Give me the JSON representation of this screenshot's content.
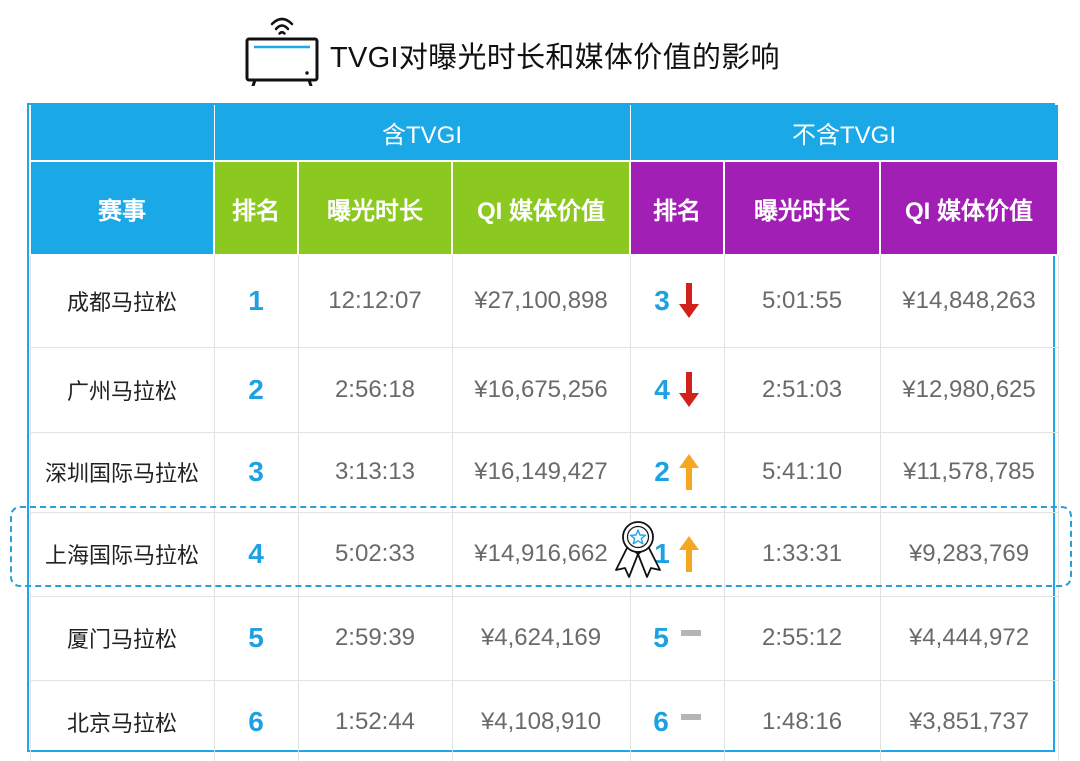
{
  "title": "TVGI对曝光时长和媒体价值的影响",
  "table": {
    "group_headers": [
      "含TVGI",
      "不含TVGI"
    ],
    "columns": [
      "赛事",
      "排名",
      "曝光时长",
      "QI 媒体价值",
      "排名",
      "曝光时长",
      "QI 媒体价值"
    ],
    "rows": [
      {
        "event": "成都马拉松",
        "rank_with": "1",
        "exposure_with": "12:12:07",
        "value_with": "¥27,100,898",
        "rank_without": "3",
        "trend": "down",
        "exposure_without": "5:01:55",
        "value_without": "¥14,848,263"
      },
      {
        "event": "广州马拉松",
        "rank_with": "2",
        "exposure_with": "2:56:18",
        "value_with": "¥16,675,256",
        "rank_without": "4",
        "trend": "down",
        "exposure_without": "2:51:03",
        "value_without": "¥12,980,625"
      },
      {
        "event": "深圳国际马拉松",
        "rank_with": "3",
        "exposure_with": "3:13:13",
        "value_with": "¥16,149,427",
        "rank_without": "2",
        "trend": "up",
        "exposure_without": "5:41:10",
        "value_without": "¥11,578,785"
      },
      {
        "event": "上海国际马拉松",
        "rank_with": "4",
        "exposure_with": "5:02:33",
        "value_with": "¥14,916,662",
        "rank_without": "1",
        "trend": "up",
        "exposure_without": "1:33:31",
        "value_without": "¥9,283,769"
      },
      {
        "event": "厦门马拉松",
        "rank_with": "5",
        "exposure_with": "2:59:39",
        "value_with": "¥4,624,169",
        "rank_without": "5",
        "trend": "same",
        "exposure_without": "2:55:12",
        "value_without": "¥4,444,972"
      },
      {
        "event": "北京马拉松",
        "rank_with": "6",
        "exposure_with": "1:52:44",
        "value_with": "¥4,108,910",
        "rank_without": "6",
        "trend": "same",
        "exposure_without": "1:48:16",
        "value_without": "¥3,851,737"
      }
    ]
  },
  "highlighted_row": "上海国际马拉松",
  "icons": {
    "header": "tv-wifi-icon",
    "up": "arrow-up-icon",
    "down": "arrow-down-icon",
    "same": "dash-icon",
    "award": "award-ribbon-icon"
  },
  "colors": {
    "header_blue": "#1aa9e6",
    "with_green": "#8cc920",
    "without_purple": "#a11fb4",
    "rank_blue": "#1ea1e3",
    "arrow_down": "#d0211c",
    "arrow_up": "#f5a623",
    "dash": "#b5b5b5"
  }
}
